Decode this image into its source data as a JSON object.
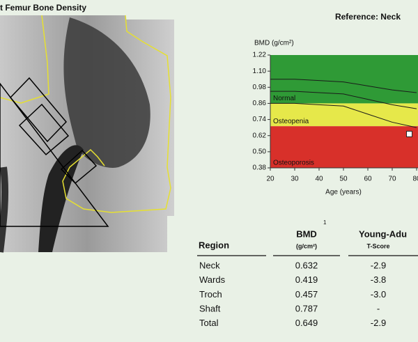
{
  "header": {
    "title": "t Femur Bone Density",
    "reference": "Reference: Neck"
  },
  "chart_data": {
    "type": "line",
    "y_label": "BMD (g/cm²)",
    "x_label": "Age (years)",
    "xlim": [
      20,
      80
    ],
    "xticks": [
      20,
      30,
      40,
      50,
      60,
      70,
      80
    ],
    "ylim": [
      0.38,
      1.22
    ],
    "yticks": [
      0.38,
      {
        "value": 0.5,
        "label": "0.50"
      },
      0.62,
      0.74,
      0.86,
      0.98,
      {
        "value": 1.1,
        "label": "1.10"
      },
      1.22
    ],
    "bands": [
      {
        "label": "Normal",
        "from": 0.86,
        "to": 1.22,
        "color": "#2f9a36"
      },
      {
        "label": "Osteopenia",
        "from": 0.69,
        "to": 0.86,
        "color": "#e6e84a"
      },
      {
        "label": "Osteoporosis",
        "from": 0.38,
        "to": 0.69,
        "color": "#d8302a"
      }
    ],
    "x": [
      20,
      30,
      40,
      50,
      60,
      70,
      80
    ],
    "series": [
      {
        "color": "#1a1a1a",
        "values": [
          1.04,
          1.04,
          1.03,
          1.02,
          0.99,
          0.96,
          0.94
        ]
      },
      {
        "color": "#1a1a1a",
        "values": [
          0.95,
          0.95,
          0.94,
          0.93,
          0.89,
          0.85,
          0.82
        ]
      },
      {
        "color": "#1a1a1a",
        "values": [
          0.86,
          0.86,
          0.85,
          0.84,
          0.78,
          0.72,
          0.68
        ]
      }
    ],
    "patient": {
      "x": 77,
      "y": 0.632
    }
  },
  "table": {
    "headers": [
      "Region",
      "BMD",
      "1",
      "(g/cm²)",
      "Young-Adu",
      "T-Score"
    ],
    "rows": [
      [
        "Neck",
        "0.632",
        "-2.9"
      ],
      [
        "Wards",
        "0.419",
        "-3.8"
      ],
      [
        "Troch",
        "0.457",
        "-3.0"
      ],
      [
        "Shaft",
        "0.787",
        "-"
      ],
      [
        "Total",
        "0.649",
        "-2.9"
      ]
    ]
  }
}
